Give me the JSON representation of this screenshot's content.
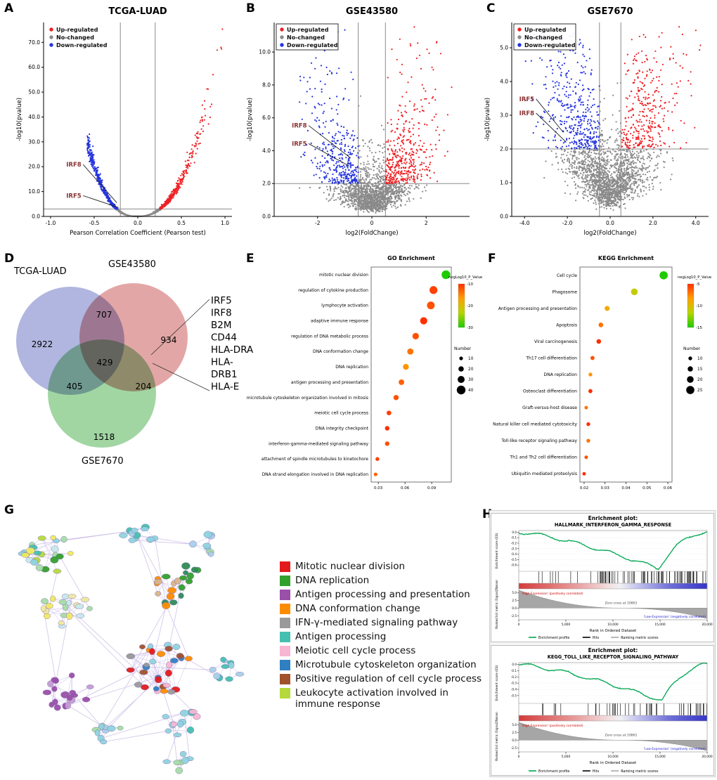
{
  "panel_labels": [
    "A",
    "B",
    "C",
    "D",
    "E",
    "F",
    "G",
    "H"
  ],
  "colors": {
    "up": "#ee2024",
    "no": "#8a8a8a",
    "down": "#2433dd"
  },
  "chart_data": [
    {
      "id": "A",
      "type": "scatter",
      "subtype": "volcano",
      "title": "TCGA-LUAD",
      "xlabel": "Pearson Correlation Coefficient (Pearson test)",
      "ylabel": "-log10(pvalue)",
      "xlim": [
        -1.08,
        1.08
      ],
      "ylim": [
        0,
        78
      ],
      "xticks": [
        -1.0,
        -0.5,
        0.0,
        0.5,
        1.0
      ],
      "xtick_labels": [
        "-1.0",
        "-0.5",
        "0.0",
        "0.5",
        "1.0"
      ],
      "yticks": [
        0,
        10,
        20,
        30,
        40,
        50,
        60,
        70
      ],
      "ytick_labels": [
        "0.0",
        "10.0",
        "20.0",
        "30.0",
        "40.0",
        "50.0",
        "60.0",
        "70.0"
      ],
      "hline": 3,
      "vlines": [
        -0.2,
        0.2
      ],
      "legend": [
        {
          "label": "Up-regulated",
          "color": "#ee2024"
        },
        {
          "label": "No-changed",
          "color": "#8a8a8a"
        },
        {
          "label": "Down-regulated",
          "color": "#2433dd"
        }
      ],
      "legend_border": false,
      "neg_frac": 0.5,
      "annotations": [
        {
          "label": "IRF8",
          "text_xy": [
            -0.82,
            20
          ],
          "point_xy": [
            -0.24,
            5.5
          ]
        },
        {
          "label": "IRF5",
          "text_xy": [
            -0.82,
            7.5
          ],
          "point_xy": [
            -0.22,
            3.6
          ]
        }
      ],
      "extremes": {
        "max_up": [
          1.0,
          75
        ],
        "max_down": [
          -0.55,
          31
        ]
      },
      "gen": {
        "seed": 101,
        "n": 2000,
        "xsigma": 0.3,
        "base": 0,
        "coef_r": 75,
        "pow_r": 2.35,
        "coef_l": 122,
        "pow_l": 2.6,
        "jitter": 0.09,
        "xclip_r": 1.03,
        "xclip_l": 0.58
      }
    },
    {
      "id": "B",
      "type": "scatter",
      "subtype": "volcano",
      "title": "GSE43580",
      "xlabel": "log2(FoldChange)",
      "ylabel": "-log10(pvalue)",
      "xlim": [
        -3.6,
        3.6
      ],
      "ylim": [
        0,
        11.8
      ],
      "xticks": [
        -2,
        0,
        2
      ],
      "xtick_labels": [
        "-2",
        "0",
        "2"
      ],
      "yticks": [
        0,
        2,
        4,
        6,
        8,
        10
      ],
      "ytick_labels": [
        "0.0",
        "2.0",
        "4.0",
        "6.0",
        "8.0",
        "10.0"
      ],
      "hline": 2,
      "vlines": [
        -0.5,
        0.5
      ],
      "legend": [
        {
          "label": "Up-regulated",
          "color": "#ee2024"
        },
        {
          "label": "No-changed",
          "color": "#8a8a8a"
        },
        {
          "label": "Down-regulated",
          "color": "#2433dd"
        }
      ],
      "legend_border": true,
      "neg_frac": 0.5,
      "annotations": [
        {
          "label": "IRF8",
          "text_xy": [
            -2.95,
            5.4
          ],
          "point_xy": [
            -0.78,
            3.55
          ]
        },
        {
          "label": "IRF5",
          "text_xy": [
            -2.95,
            4.3
          ],
          "point_xy": [
            -0.82,
            3.05
          ]
        }
      ],
      "gen": {
        "seed": 202,
        "n": 2300,
        "xsigma": 0.95,
        "base": 1.05,
        "coef_r": 1.25,
        "pow_r": 1.5,
        "coef_l": 1.25,
        "pow_l": 1.5,
        "jitter": 0.55,
        "xclip_r": 3.5,
        "xclip_l": 2.7
      }
    },
    {
      "id": "C",
      "type": "scatter",
      "subtype": "volcano",
      "title": "GSE7670",
      "xlabel": "log2(FoldChange)",
      "ylabel": "-log10(pvalue)",
      "xlim": [
        -4.6,
        4.6
      ],
      "ylim": [
        0,
        5.75
      ],
      "xticks": [
        -4,
        -2,
        0,
        2,
        4
      ],
      "xtick_labels": [
        "-4.0",
        "-2.0",
        "0.0",
        "2.0",
        "4.0"
      ],
      "yticks": [
        0,
        1,
        2,
        3,
        4,
        5
      ],
      "ytick_labels": [
        "0.0",
        "1.0",
        "2.0",
        "3.0",
        "4.0",
        "5.0"
      ],
      "hline": 2,
      "vlines": [
        -0.5,
        0.5
      ],
      "legend": [
        {
          "label": "Up-regulated",
          "color": "#ee2024"
        },
        {
          "label": "No-changed",
          "color": "#8a8a8a"
        },
        {
          "label": "Down-regulated",
          "color": "#2433dd"
        }
      ],
      "legend_border": true,
      "neg_frac": 0.55,
      "annotations": [
        {
          "label": "IRF5",
          "text_xy": [
            -4.25,
            3.42
          ],
          "point_xy": [
            -2.2,
            2.5
          ]
        },
        {
          "label": "IRF8",
          "text_xy": [
            -4.25,
            3.0
          ],
          "point_xy": [
            -2.05,
            2.2
          ]
        }
      ],
      "gen": {
        "seed": 303,
        "n": 2500,
        "xsigma": 1.3,
        "base": 0.72,
        "coef_r": 0.85,
        "pow_r": 1.15,
        "coef_l": 0.85,
        "pow_l": 1.15,
        "jitter": 0.5,
        "xclip_r": 4.3,
        "xclip_l": 4.05
      }
    },
    {
      "id": "D",
      "type": "venn",
      "sets": [
        "TCGA-LUAD",
        "GSE43580",
        "GSE7670"
      ],
      "set_colors": [
        "#7f89cc",
        "#d27070",
        "#67bd6b"
      ],
      "counts": {
        "TCGA_LUAD_only": 2922,
        "TCGA_LUAD_and_GSE43580": 707,
        "GSE43580_only": 934,
        "TCGA_LUAD_and_GSE7670": 405,
        "all_three": 429,
        "GSE43580_and_GSE7670": 204,
        "GSE7670_only": 1518
      },
      "count_labels": [
        "2922",
        "707",
        "934",
        "405",
        "429",
        "204",
        "1518"
      ],
      "center_genes": [
        "IRF5",
        "IRF8",
        "B2M",
        "CD44",
        "HLA-DRA",
        "HLA-",
        "DRB1",
        "HLA-E"
      ]
    },
    {
      "id": "E",
      "type": "dotplot",
      "title": "GO Enrichment",
      "xlim": [
        0.022,
        0.112
      ],
      "xticks": [
        0.03,
        0.06,
        0.09
      ],
      "xtick_labels": [
        "0.03",
        "0.06",
        "0.09"
      ],
      "color_title": "negLog10_P_Value",
      "color_domain": [
        -10,
        -30
      ],
      "color_tick_labels": [
        "-10",
        "-20",
        "-30"
      ],
      "size_title": "Number",
      "size_ticks": [
        10,
        20,
        30,
        40
      ],
      "rows": [
        {
          "label": "mitotic nuclear division",
          "ratio": 0.106,
          "number": 40,
          "neglog10p": -32
        },
        {
          "label": "regulation of cytokine production",
          "ratio": 0.092,
          "number": 35,
          "neglog10p": -11
        },
        {
          "label": "lymphocyte activation",
          "ratio": 0.089,
          "number": 34,
          "neglog10p": -12
        },
        {
          "label": "adaptive immune response",
          "ratio": 0.081,
          "number": 31,
          "neglog10p": -10
        },
        {
          "label": "regulation of DNA metabolic process",
          "ratio": 0.072,
          "number": 27,
          "neglog10p": -12
        },
        {
          "label": "DNA conformation change",
          "ratio": 0.066,
          "number": 25,
          "neglog10p": -14
        },
        {
          "label": "DNA replication",
          "ratio": 0.061,
          "number": 23,
          "neglog10p": -16
        },
        {
          "label": "antigen processing and presentation",
          "ratio": 0.056,
          "number": 21,
          "neglog10p": -13
        },
        {
          "label": "microtubule cytoskeleton organization involved in mitosis",
          "ratio": 0.05,
          "number": 19,
          "neglog10p": -12
        },
        {
          "label": "meiotic cell cycle process",
          "ratio": 0.042,
          "number": 16,
          "neglog10p": -11
        },
        {
          "label": "DNA integrity checkpoint",
          "ratio": 0.04,
          "number": 15,
          "neglog10p": -10
        },
        {
          "label": "interferon-gamma-mediated signaling pathway",
          "ratio": 0.04,
          "number": 15,
          "neglog10p": -12
        },
        {
          "label": "attachment of spindle microtubules to kinetochore",
          "ratio": 0.029,
          "number": 11,
          "neglog10p": -11
        },
        {
          "label": "DNA strand elongation involved in DNA replication",
          "ratio": 0.027,
          "number": 10,
          "neglog10p": -13
        }
      ]
    },
    {
      "id": "F",
      "type": "dotplot",
      "title": "KEGG Enrichment",
      "xlim": [
        0.018,
        0.062
      ],
      "xticks": [
        0.02,
        0.03,
        0.04,
        0.05,
        0.06
      ],
      "xtick_labels": [
        "0.02",
        "0.03",
        "0.04",
        "0.05",
        "0.06"
      ],
      "color_title": "negLog10_P_Value",
      "color_domain": [
        -5,
        -15
      ],
      "color_tick_labels": [
        "-5",
        "-10",
        "-15"
      ],
      "size_title": "Number",
      "size_ticks": [
        10,
        15,
        20,
        25
      ],
      "rows": [
        {
          "label": "Cell cycle",
          "ratio": 0.058,
          "number": 25,
          "neglog10p": -17
        },
        {
          "label": "Phagosome",
          "ratio": 0.044,
          "number": 20,
          "neglog10p": -11
        },
        {
          "label": "Antigen processing and presentation",
          "ratio": 0.031,
          "number": 14,
          "neglog10p": -9
        },
        {
          "label": "Apoptosis",
          "ratio": 0.028,
          "number": 13,
          "neglog10p": -7
        },
        {
          "label": "Viral carcinogenesis",
          "ratio": 0.027,
          "number": 13,
          "neglog10p": -5
        },
        {
          "label": "Th17 cell differentiation",
          "ratio": 0.024,
          "number": 11,
          "neglog10p": -6
        },
        {
          "label": "DNA replication",
          "ratio": 0.023,
          "number": 10,
          "neglog10p": -8
        },
        {
          "label": "Osteoclast differentiation",
          "ratio": 0.023,
          "number": 11,
          "neglog10p": -5
        },
        {
          "label": "Graft-versus-host disease",
          "ratio": 0.021,
          "number": 9,
          "neglog10p": -7
        },
        {
          "label": "Natural killer cell mediated cytotoxicity",
          "ratio": 0.022,
          "number": 10,
          "neglog10p": -5
        },
        {
          "label": "Toll-like receptor signaling pathway",
          "ratio": 0.022,
          "number": 10,
          "neglog10p": -7
        },
        {
          "label": "Th1 and Th2 cell differentiation",
          "ratio": 0.021,
          "number": 9,
          "neglog10p": -6
        },
        {
          "label": "Ubiquitin mediated proteolysis",
          "ratio": 0.02,
          "number": 9,
          "neglog10p": -4
        }
      ]
    },
    {
      "id": "G",
      "type": "network",
      "palette": {
        "red": "#e31a1c",
        "green": "#33a02c",
        "purple": "#9a4fa8",
        "orange": "#ff8c00",
        "grey": "#9a9a9a",
        "teal": "#45c0b0",
        "pink": "#f7b6d2",
        "blue": "#2f7fc1",
        "brown": "#a0522d",
        "lightgreen": "#b5d93c",
        "yellow": "#efe95e",
        "lightyellow": "#eee8a0",
        "cyan": "#8fd3de",
        "lightblue": "#aacfe8",
        "palegreen": "#a5dca5",
        "violet": "#c39bd3",
        "tan": "#d8b48a",
        "darkgreen": "#2e8b57",
        "lightcyan": "#c6e8ea"
      },
      "clusters": [
        {
          "cx": 62,
          "cy": 66,
          "r": 38,
          "n": 24,
          "colors": [
            "palegreen",
            "green",
            "cyan",
            "yellow",
            "lightgreen",
            "teal",
            "lightcyan"
          ]
        },
        {
          "cx": 195,
          "cy": 45,
          "r": 24,
          "n": 12,
          "colors": [
            "cyan",
            "teal",
            "lightblue"
          ]
        },
        {
          "cx": 290,
          "cy": 55,
          "r": 20,
          "n": 8,
          "colors": [
            "cyan",
            "lightblue",
            "palegreen"
          ]
        },
        {
          "cx": 90,
          "cy": 148,
          "r": 36,
          "n": 20,
          "colors": [
            "yellow",
            "lightyellow",
            "palegreen",
            "lightcyan"
          ]
        },
        {
          "cx": 235,
          "cy": 123,
          "r": 28,
          "n": 14,
          "colors": [
            "orange",
            "green",
            "tan",
            "darkgreen"
          ]
        },
        {
          "cx": 265,
          "cy": 96,
          "r": 16,
          "n": 7,
          "colors": [
            "green",
            "darkgreen"
          ]
        },
        {
          "cx": 222,
          "cy": 230,
          "r": 46,
          "n": 32,
          "colors": [
            "red",
            "orange",
            "pink",
            "brown",
            "blue",
            "grey",
            "cyan",
            "red"
          ]
        },
        {
          "cx": 92,
          "cy": 262,
          "r": 34,
          "n": 18,
          "colors": [
            "purple",
            "violet",
            "purple"
          ]
        },
        {
          "cx": 320,
          "cy": 235,
          "r": 22,
          "n": 10,
          "colors": [
            "cyan",
            "lightblue",
            "teal"
          ]
        },
        {
          "cx": 152,
          "cy": 318,
          "r": 24,
          "n": 10,
          "colors": [
            "lightblue",
            "cyan",
            "palegreen"
          ]
        },
        {
          "cx": 255,
          "cy": 308,
          "r": 26,
          "n": 12,
          "colors": [
            "teal",
            "cyan",
            "pink"
          ]
        },
        {
          "cx": 250,
          "cy": 362,
          "r": 18,
          "n": 7,
          "colors": [
            "cyan",
            "palegreen"
          ]
        }
      ],
      "links": [
        [
          0,
          1
        ],
        [
          1,
          2
        ],
        [
          0,
          3
        ],
        [
          3,
          7
        ],
        [
          1,
          4
        ],
        [
          4,
          5
        ],
        [
          4,
          6
        ],
        [
          5,
          6
        ],
        [
          6,
          7
        ],
        [
          6,
          8
        ],
        [
          6,
          9
        ],
        [
          6,
          10
        ],
        [
          9,
          10
        ],
        [
          10,
          11
        ],
        [
          3,
          6
        ],
        [
          7,
          9
        ]
      ],
      "legend": [
        {
          "label": "Mitotic nuclear division",
          "color": "#e31a1c"
        },
        {
          "label": "DNA replication",
          "color": "#33a02c"
        },
        {
          "label": "Antigen processing and presentation",
          "color": "#9a4fa8"
        },
        {
          "label": "DNA conformation change",
          "color": "#ff8c00"
        },
        {
          "label": "IFN-γ-mediated signaling pathway",
          "color": "#9a9a9a"
        },
        {
          "label": "Antigen processing",
          "color": "#45c0b0"
        },
        {
          "label": "Meiotic cell cycle process",
          "color": "#f7b6d2"
        },
        {
          "label": "Microtubule cytoskeleton organization",
          "color": "#2f7fc1"
        },
        {
          "label": "Positive regulation of cell cycle process",
          "color": "#a0522d"
        },
        {
          "label": "Leukocyte activation involved in immune response",
          "color": "#b5d93c"
        }
      ],
      "gen": {
        "seed": 77
      }
    },
    {
      "id": "H1",
      "type": "line",
      "subtype": "gsea",
      "header": "Enrichment plot:",
      "title": "HALLMARK_INTERFERON_GAMMA_RESPONSE",
      "es_ylabel": "Enrichment score (ES)",
      "metric_ylabel": "Ranked list metric (Signal2Noise)",
      "xlabel": "Rank in Ordered Dataset",
      "es_yticks": [
        0.0,
        -0.1,
        -0.2,
        -0.3,
        -0.4,
        -0.5,
        -0.6
      ],
      "es_ytick_labels": [
        "0.0",
        "-0.1",
        "-0.2",
        "-0.3",
        "-0.4",
        "-0.5",
        "-0.6"
      ],
      "es_min": -0.66,
      "metric_yticks": [
        5.0,
        2.5,
        0.0,
        -2.5
      ],
      "metric_ytick_labels": [
        "5.0",
        "2.5",
        "0.0",
        "-2.5"
      ],
      "metric_range": [
        6.2,
        -3.8
      ],
      "xtick_labels": [
        "0",
        "5,000",
        "10,000",
        "15,000",
        "20,000"
      ],
      "n_ranks": 20000,
      "zero_cross": 10861,
      "zero_cross_label": "Zero cross at 10861",
      "pos_label": "'High-Expression' (positively correlated)",
      "neg_label": "'Low-Expression' (negatively correlated)",
      "legend": [
        "Enrichment profile",
        "Hits",
        "Ranking metric scores"
      ],
      "gen": {
        "seed": 7,
        "hits": 85,
        "min_at": 0.74
      }
    },
    {
      "id": "H2",
      "type": "line",
      "subtype": "gsea",
      "header": "Enrichment plot:",
      "title": "KEGG_TOLL_LIKE_RECEPTOR_SIGNALING_PATHWAY",
      "es_ylabel": "Enrichment score (ES)",
      "metric_ylabel": "Ranked list metric (Signal2Noise)",
      "xlabel": "Rank in Ordered Dataset",
      "es_yticks": [
        0.0,
        -0.1,
        -0.2,
        -0.3,
        -0.4,
        -0.5
      ],
      "es_ytick_labels": [
        "0.0",
        "-0.1",
        "-0.2",
        "-0.3",
        "-0.4",
        "-0.5"
      ],
      "es_min": -0.58,
      "metric_yticks": [
        5.0,
        2.5,
        0.0,
        -2.5
      ],
      "metric_ytick_labels": [
        "5.0",
        "2.5",
        "0.0",
        "-2.5"
      ],
      "metric_range": [
        6.2,
        -3.8
      ],
      "xtick_labels": [
        "0",
        "5,000",
        "10,000",
        "15,000",
        "20,000"
      ],
      "n_ranks": 20000,
      "zero_cross": 10861,
      "zero_cross_label": "Zero cross at 10861",
      "pos_label": "'High-Expression' (positively correlated)",
      "neg_label": "'Low-Expression' (negatively correlated)",
      "legend": [
        "Enrichment profile",
        "Hits",
        "Ranking metric scores"
      ],
      "gen": {
        "seed": 9,
        "hits": 52,
        "min_at": 0.76
      }
    }
  ]
}
